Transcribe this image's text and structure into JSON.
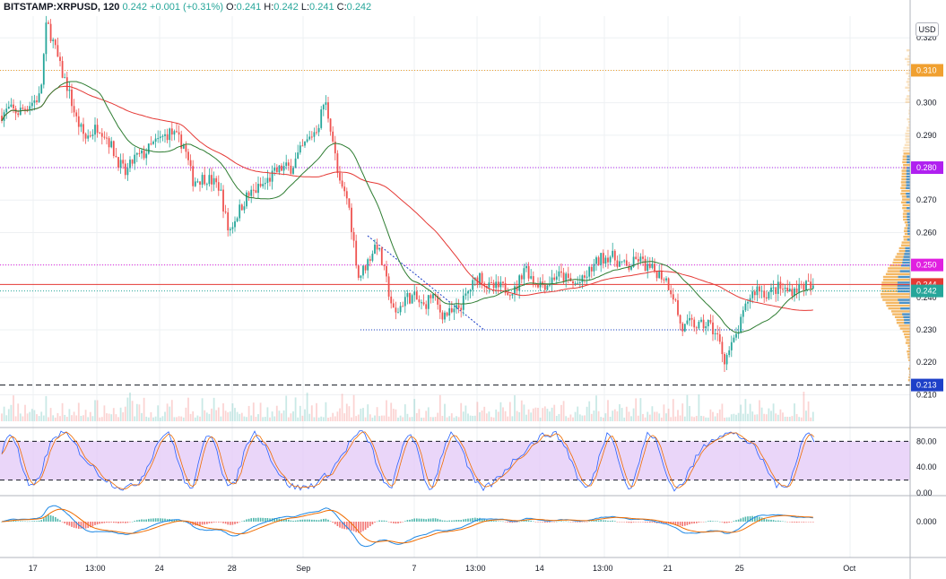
{
  "header": {
    "symbol": "BITSTAMP:XRPUSD, 120",
    "last": "0.242",
    "change": "+0.001 (+0.31%)",
    "open_label": "O:",
    "open": "0.241",
    "high_label": "H:",
    "high": "0.242",
    "low_label": "L:",
    "low": "0.241",
    "close_label": "C:",
    "close": "0.242"
  },
  "currency_button": "USD",
  "colors": {
    "up": "#26a69a",
    "down": "#ef5350",
    "ma_red": "#e53935",
    "ma_green": "#2e7d32",
    "stoch_k": "#2962ff",
    "stoch_d": "#ef6c00",
    "stoch_band": "#e1c4f7",
    "macd": "#1e88e5",
    "signal": "#ef6c00",
    "orange_line": "#f0a030",
    "purple_line": "#b020f0",
    "magenta_line": "#e020e0",
    "blue_tag": "#1e40c8"
  },
  "chart_data": {
    "type": "candlestick",
    "price_axis": {
      "ticks": [
        "0.320",
        "0.310",
        "0.300",
        "0.290",
        "0.280",
        "0.270",
        "0.260",
        "0.250",
        "0.240",
        "0.230",
        "0.220",
        "0.210"
      ]
    },
    "time_axis": {
      "ticks": [
        "17",
        "13:00",
        "24",
        "28",
        "Sep",
        "7",
        "13:00",
        "14",
        "13:00",
        "21",
        "25",
        "Oct"
      ]
    },
    "horizontal_levels": [
      {
        "value": 0.31,
        "label": "0.310",
        "color": "#f0a030",
        "style": "dotted"
      },
      {
        "value": 0.28,
        "label": "0.280",
        "color": "#b020f0",
        "style": "dotted"
      },
      {
        "value": 0.25,
        "label": "0.250",
        "color": "#e020e0",
        "style": "dotted"
      },
      {
        "value": 0.244,
        "label": "0.244",
        "color": "#e53935",
        "style": "solid"
      },
      {
        "value": 0.242,
        "label": "0.242",
        "color": "#26a69a",
        "style": "dotted"
      },
      {
        "value": 0.23,
        "label": "",
        "color": "#1e40c8",
        "style": "dotted"
      },
      {
        "value": 0.213,
        "label": "0.213",
        "color": "#1e40c8",
        "style": "dashed"
      }
    ],
    "price_anchors": [
      [
        0,
        0.296
      ],
      [
        10,
        0.298
      ],
      [
        20,
        0.297
      ],
      [
        30,
        0.299
      ],
      [
        45,
        0.302
      ],
      [
        52,
        0.325
      ],
      [
        60,
        0.318
      ],
      [
        68,
        0.31
      ],
      [
        75,
        0.305
      ],
      [
        85,
        0.295
      ],
      [
        95,
        0.289
      ],
      [
        110,
        0.293
      ],
      [
        120,
        0.289
      ],
      [
        130,
        0.283
      ],
      [
        140,
        0.278
      ],
      [
        150,
        0.283
      ],
      [
        160,
        0.284
      ],
      [
        170,
        0.287
      ],
      [
        180,
        0.289
      ],
      [
        190,
        0.291
      ],
      [
        205,
        0.287
      ],
      [
        215,
        0.276
      ],
      [
        230,
        0.277
      ],
      [
        245,
        0.274
      ],
      [
        255,
        0.26
      ],
      [
        265,
        0.266
      ],
      [
        275,
        0.271
      ],
      [
        285,
        0.273
      ],
      [
        295,
        0.275
      ],
      [
        305,
        0.278
      ],
      [
        315,
        0.28
      ],
      [
        325,
        0.28
      ],
      [
        335,
        0.285
      ],
      [
        345,
        0.289
      ],
      [
        355,
        0.293
      ],
      [
        362,
        0.301
      ],
      [
        370,
        0.291
      ],
      [
        378,
        0.275
      ],
      [
        388,
        0.27
      ],
      [
        400,
        0.246
      ],
      [
        410,
        0.251
      ],
      [
        420,
        0.257
      ],
      [
        430,
        0.246
      ],
      [
        440,
        0.234
      ],
      [
        452,
        0.24
      ],
      [
        462,
        0.24
      ],
      [
        472,
        0.237
      ],
      [
        482,
        0.241
      ],
      [
        492,
        0.235
      ],
      [
        505,
        0.235
      ],
      [
        515,
        0.238
      ],
      [
        525,
        0.243
      ],
      [
        535,
        0.247
      ],
      [
        545,
        0.243
      ],
      [
        560,
        0.243
      ],
      [
        575,
        0.242
      ],
      [
        585,
        0.25
      ],
      [
        595,
        0.245
      ],
      [
        610,
        0.244
      ],
      [
        620,
        0.247
      ],
      [
        630,
        0.246
      ],
      [
        640,
        0.244
      ],
      [
        650,
        0.245
      ],
      [
        660,
        0.249
      ],
      [
        670,
        0.252
      ],
      [
        680,
        0.253
      ],
      [
        690,
        0.251
      ],
      [
        700,
        0.249
      ],
      [
        712,
        0.252
      ],
      [
        722,
        0.249
      ],
      [
        732,
        0.248
      ],
      [
        742,
        0.246
      ],
      [
        752,
        0.24
      ],
      [
        760,
        0.23
      ],
      [
        770,
        0.232
      ],
      [
        780,
        0.231
      ],
      [
        790,
        0.232
      ],
      [
        800,
        0.228
      ],
      [
        808,
        0.221
      ],
      [
        818,
        0.226
      ],
      [
        826,
        0.232
      ],
      [
        835,
        0.24
      ],
      [
        845,
        0.243
      ],
      [
        855,
        0.241
      ],
      [
        868,
        0.243
      ],
      [
        878,
        0.242
      ],
      [
        890,
        0.243
      ],
      [
        900,
        0.244
      ],
      [
        908,
        0.242
      ]
    ],
    "volume_profile": "horizontal histogram on right edge, concentrated around 0.240-0.245"
  }
}
